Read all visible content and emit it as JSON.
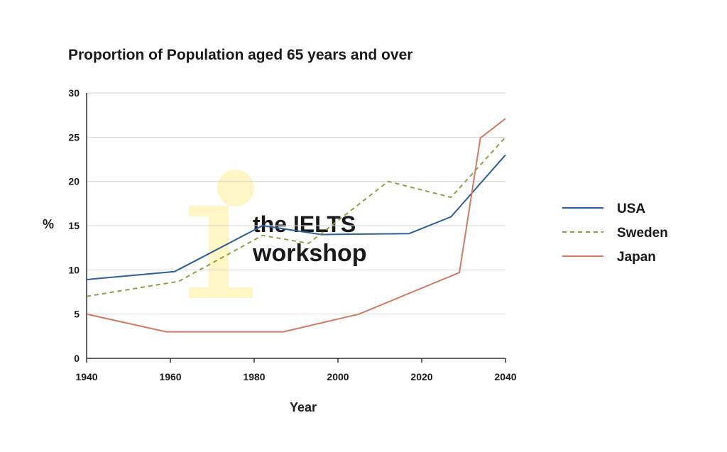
{
  "chart_data": {
    "type": "line",
    "title": "Proportion of Population aged 65 years and over",
    "xlabel": "Year",
    "ylabel": "%",
    "xlim": [
      1940,
      2040
    ],
    "ylim": [
      0,
      30
    ],
    "x_ticks": [
      "1940",
      "1960",
      "1980",
      "2000",
      "2020",
      "2040"
    ],
    "y_ticks": [
      "0",
      "5",
      "10",
      "15",
      "20",
      "25",
      "30"
    ],
    "grid": "horizontal",
    "legend_position": "right",
    "series": [
      {
        "name": "USA",
        "color": "#2c5f96",
        "dash": "solid",
        "points": [
          [
            1940,
            8.9
          ],
          [
            1961,
            9.8
          ],
          [
            1982,
            15.0
          ],
          [
            1996,
            14.0
          ],
          [
            2017,
            14.1
          ],
          [
            2027,
            16.0
          ],
          [
            2040,
            23.0
          ]
        ]
      },
      {
        "name": "Sweden",
        "color": "#8ea146",
        "dash": "dashed",
        "points": [
          [
            1940,
            7.0
          ],
          [
            1962,
            8.7
          ],
          [
            1982,
            13.9
          ],
          [
            1993,
            13.0
          ],
          [
            2012,
            20.0
          ],
          [
            2027,
            18.2
          ],
          [
            2040,
            25.0
          ]
        ]
      },
      {
        "name": "Japan",
        "color": "#d27a62",
        "dash": "solid",
        "points": [
          [
            1940,
            5.0
          ],
          [
            1959,
            3.0
          ],
          [
            1987,
            3.0
          ],
          [
            2005,
            5.0
          ],
          [
            2029,
            9.7
          ],
          [
            2034,
            24.9
          ],
          [
            2040,
            27.1
          ]
        ]
      }
    ]
  },
  "watermark": {
    "line1": "the IELTS",
    "line2": "workshop",
    "color": "#fdf5c2"
  }
}
